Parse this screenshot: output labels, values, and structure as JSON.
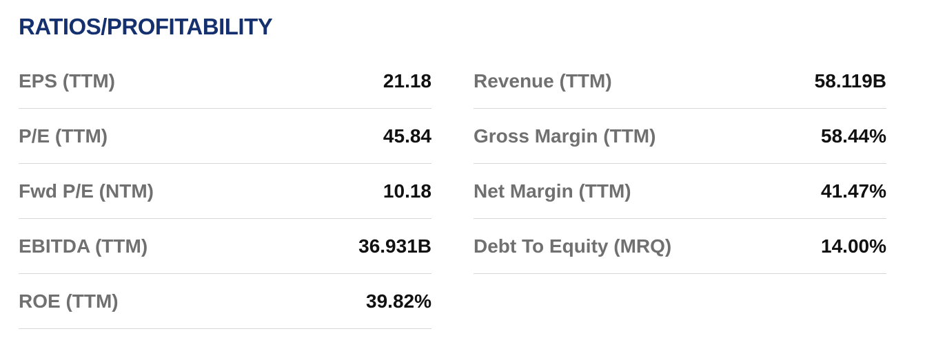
{
  "header": {
    "title": "RATIOS/PROFITABILITY"
  },
  "columns": [
    {
      "rows": [
        {
          "label": "EPS (TTM)",
          "value": "21.18"
        },
        {
          "label": "P/E (TTM)",
          "value": "45.84"
        },
        {
          "label": "Fwd P/E (NTM)",
          "value": "10.18"
        },
        {
          "label": "EBITDA (TTM)",
          "value": "36.931B"
        },
        {
          "label": "ROE (TTM)",
          "value": "39.82%"
        }
      ]
    },
    {
      "rows": [
        {
          "label": "Revenue (TTM)",
          "value": "58.119B"
        },
        {
          "label": "Gross Margin (TTM)",
          "value": "58.44%"
        },
        {
          "label": "Net Margin (TTM)",
          "value": "41.47%"
        },
        {
          "label": "Debt To Equity (MRQ)",
          "value": "14.00%"
        }
      ]
    }
  ]
}
